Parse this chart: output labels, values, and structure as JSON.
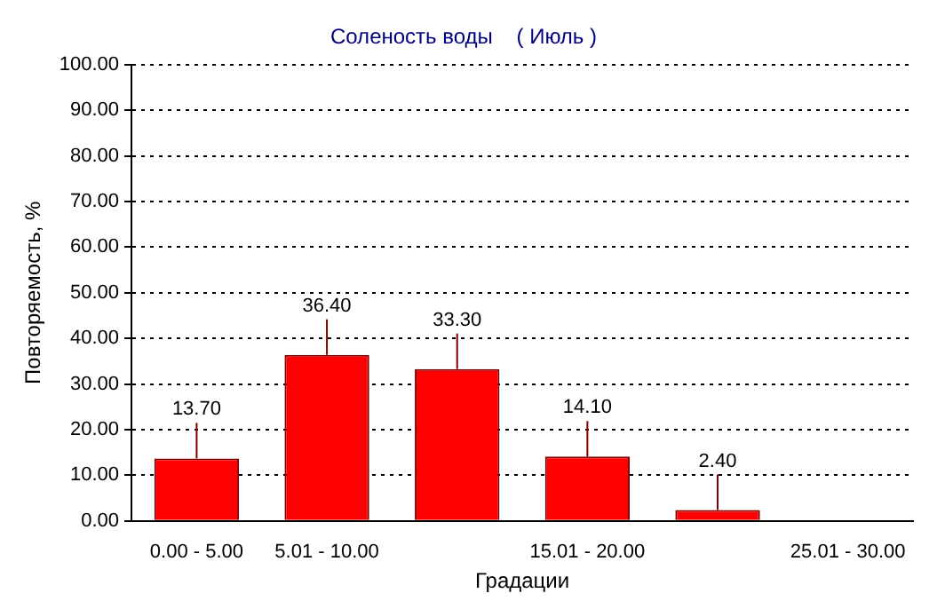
{
  "chart_data": {
    "type": "bar",
    "title": "Соленость воды    ( Июль )",
    "xlabel": "Градации",
    "ylabel": "Повторяемость, %",
    "categories": [
      "0.00 - 5.00",
      "5.01 - 10.00",
      null,
      "15.01 - 20.00",
      null,
      "25.01 - 30.00"
    ],
    "values": [
      13.7,
      36.4,
      33.3,
      14.1,
      2.4,
      null
    ],
    "color": "#ff0000",
    "value_labels": [
      "13.70",
      "36.40",
      "33.30",
      "14.10",
      "2.40",
      null
    ],
    "ylim": [
      0,
      100
    ],
    "yticks": [
      {
        "value": 0,
        "label": "0.00"
      },
      {
        "value": 10,
        "label": "10.00"
      },
      {
        "value": 20,
        "label": "20.00"
      },
      {
        "value": 30,
        "label": "30.00"
      },
      {
        "value": 40,
        "label": "40.00"
      },
      {
        "value": 50,
        "label": "50.00"
      },
      {
        "value": 60,
        "label": "60.00"
      },
      {
        "value": 70,
        "label": "70.00"
      },
      {
        "value": 80,
        "label": "80.00"
      },
      {
        "value": 90,
        "label": "90.00"
      },
      {
        "value": 100,
        "label": "100.00"
      }
    ],
    "grid": "y",
    "legend": false
  }
}
